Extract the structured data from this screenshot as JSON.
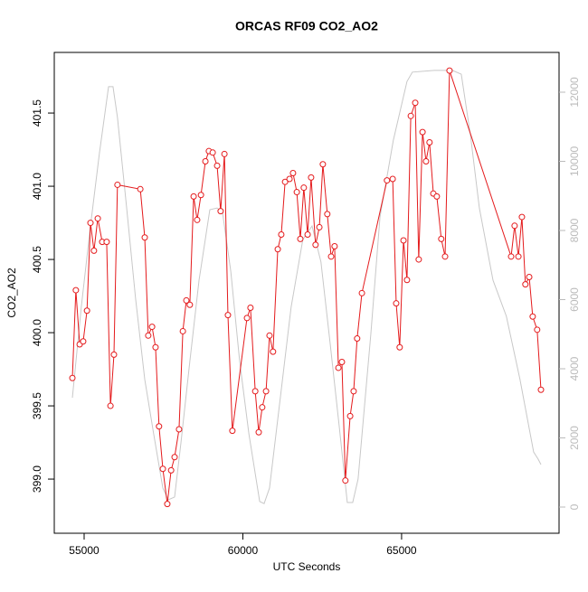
{
  "chart_data": {
    "type": "line",
    "title": "ORCAS RF09 CO2_AO2",
    "xlabel": "UTC Seconds",
    "ylabel": "CO2_AO2",
    "xlim": [
      54060,
      69960
    ],
    "xticks": [
      55000,
      60000,
      65000
    ],
    "ylim": [
      398.63,
      401.914
    ],
    "yticks": [
      {
        "value": 399,
        "label": "399.0"
      },
      399.5,
      {
        "value": 400,
        "label": "400.0"
      },
      400.5,
      {
        "value": 401,
        "label": "401.0"
      },
      401.5
    ],
    "y2lim": [
      -758,
      13150
    ],
    "y2ticks": [
      0,
      2000,
      4000,
      6000,
      8000,
      10000,
      12000
    ],
    "series": [
      {
        "color": "#e41a1c",
        "markers": true,
        "x": [
          54630,
          54740,
          54860,
          54970,
          55090,
          55200,
          55310,
          55430,
          55570,
          55710,
          55830,
          55940,
          56050,
          56770,
          56910,
          57020,
          57140,
          57250,
          57360,
          57480,
          57620,
          57740,
          57850,
          57990,
          58110,
          58220,
          58330,
          58450,
          58560,
          58680,
          58820,
          58930,
          59050,
          59190,
          59300,
          59420,
          59530,
          59670,
          60130,
          60240,
          60390,
          60500,
          60610,
          60730,
          60840,
          60950,
          61100,
          61210,
          61330,
          61470,
          61580,
          61700,
          61810,
          61920,
          62040,
          62150,
          62290,
          62410,
          62520,
          62660,
          62780,
          62890,
          63010,
          63120,
          63230,
          63380,
          63490,
          63600,
          63750,
          64540,
          64720,
          64830,
          64940,
          65060,
          65170,
          65290,
          65430,
          65540,
          65660,
          65770,
          65880,
          66000,
          66110,
          66250,
          66370,
          66510,
          68450,
          68560,
          68680,
          68790,
          68900,
          69020,
          69130,
          69270,
          69390
        ],
        "values": [
          399.69,
          400.29,
          399.92,
          399.94,
          400.15,
          400.75,
          400.56,
          400.78,
          400.62,
          400.62,
          399.5,
          399.85,
          401.01,
          400.98,
          400.65,
          399.98,
          400.04,
          399.9,
          399.36,
          399.07,
          398.83,
          399.06,
          399.15,
          399.34,
          400.01,
          400.22,
          400.19,
          400.93,
          400.77,
          400.94,
          401.17,
          401.24,
          401.23,
          401.14,
          400.83,
          401.22,
          400.12,
          399.33,
          400.1,
          400.17,
          399.6,
          399.32,
          399.49,
          399.6,
          399.98,
          399.87,
          400.57,
          400.67,
          401.03,
          401.05,
          401.09,
          400.96,
          400.64,
          400.99,
          400.67,
          401.06,
          400.6,
          400.72,
          401.15,
          400.81,
          400.52,
          400.59,
          399.76,
          399.8,
          398.99,
          399.43,
          399.6,
          399.96,
          400.27,
          401.04,
          401.05,
          400.2,
          399.9,
          400.63,
          400.36,
          401.48,
          401.57,
          400.5,
          401.37,
          401.17,
          401.3,
          400.95,
          400.93,
          400.64,
          400.52,
          401.79,
          400.52,
          400.73,
          400.52,
          400.79,
          400.33,
          400.38,
          400.11,
          400.02,
          399.61
        ]
      },
      {
        "color": "#c8c8c8",
        "axis": "y2",
        "markers": false,
        "x": [
          54630,
          54910,
          55200,
          55480,
          55770,
          55910,
          56050,
          56340,
          56620,
          56910,
          57190,
          57480,
          57650,
          57850,
          58050,
          58330,
          58620,
          58960,
          59190,
          59360,
          59620,
          59900,
          60190,
          60530,
          60670,
          60840,
          61180,
          61520,
          61890,
          62180,
          62460,
          62750,
          63030,
          63290,
          63460,
          63630,
          64030,
          64320,
          64740,
          65170,
          65340,
          66030,
          66600,
          66880,
          67170,
          67450,
          67880,
          68300,
          68730,
          69160,
          69300,
          69390
        ],
        "values": [
          3160,
          5780,
          8130,
          10220,
          12160,
          12160,
          11270,
          8650,
          6040,
          3690,
          2120,
          550,
          210,
          290,
          1860,
          4210,
          6560,
          8600,
          8650,
          8520,
          6820,
          4210,
          2120,
          160,
          100,
          550,
          3160,
          5780,
          7740,
          8130,
          7090,
          4730,
          2380,
          130,
          130,
          810,
          4990,
          8390,
          10610,
          12310,
          12580,
          12630,
          12630,
          12520,
          10750,
          8650,
          6560,
          5520,
          3690,
          1590,
          1390,
          1230
        ]
      }
    ]
  }
}
